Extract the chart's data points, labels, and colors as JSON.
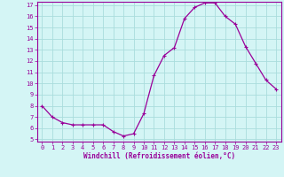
{
  "x": [
    0,
    1,
    2,
    3,
    4,
    5,
    6,
    7,
    8,
    9,
    10,
    11,
    12,
    13,
    14,
    15,
    16,
    17,
    18,
    19,
    20,
    21,
    22,
    23
  ],
  "y": [
    8.0,
    7.0,
    6.5,
    6.3,
    6.3,
    6.3,
    6.3,
    5.7,
    5.3,
    5.5,
    7.3,
    10.7,
    12.5,
    13.2,
    15.8,
    16.8,
    17.2,
    17.2,
    16.0,
    15.3,
    13.3,
    11.8,
    10.3,
    9.5
  ],
  "line_color": "#990099",
  "marker": "+",
  "marker_size": 3,
  "marker_linewidth": 0.8,
  "line_width": 0.9,
  "bg_color": "#d4f5f5",
  "grid_color": "#aadddd",
  "axis_color": "#990099",
  "xlabel": "Windchill (Refroidissement éolien,°C)",
  "xlabel_color": "#990099",
  "ylim": [
    4.8,
    17.3
  ],
  "xlim": [
    -0.5,
    23.5
  ],
  "yticks": [
    5,
    6,
    7,
    8,
    9,
    10,
    11,
    12,
    13,
    14,
    15,
    16,
    17
  ],
  "xticks": [
    0,
    1,
    2,
    3,
    4,
    5,
    6,
    7,
    8,
    9,
    10,
    11,
    12,
    13,
    14,
    15,
    16,
    17,
    18,
    19,
    20,
    21,
    22,
    23
  ],
  "tick_fontsize": 5.0,
  "xlabel_fontsize": 5.5
}
